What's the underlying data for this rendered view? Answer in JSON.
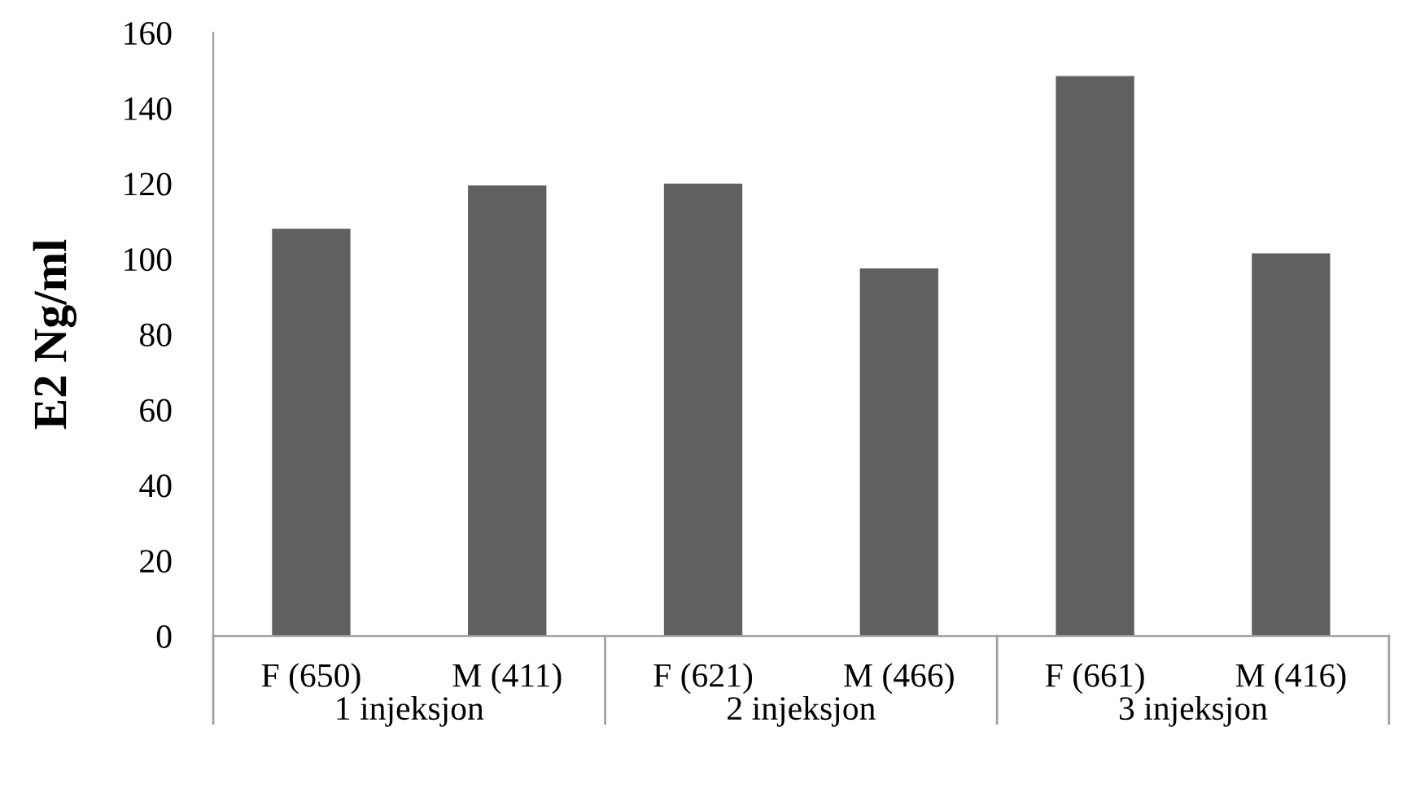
{
  "chart_data": {
    "type": "bar",
    "ylabel": "E2 Ng/ml",
    "categories": [
      "F (650)",
      "M (411)",
      "F (621)",
      "M (466)",
      "F (661)",
      "M (416)"
    ],
    "values": [
      108,
      119.5,
      120,
      97.5,
      148.5,
      101.5
    ],
    "color": "#606060",
    "annotations": [
      "1 injeksjon",
      "2 injeksjon",
      "3 injeksjon"
    ],
    "ylim": [
      0,
      160
    ],
    "yticks": [
      0,
      20,
      40,
      60,
      80,
      100,
      120,
      140,
      160
    ],
    "grid": false,
    "legend": false
  }
}
